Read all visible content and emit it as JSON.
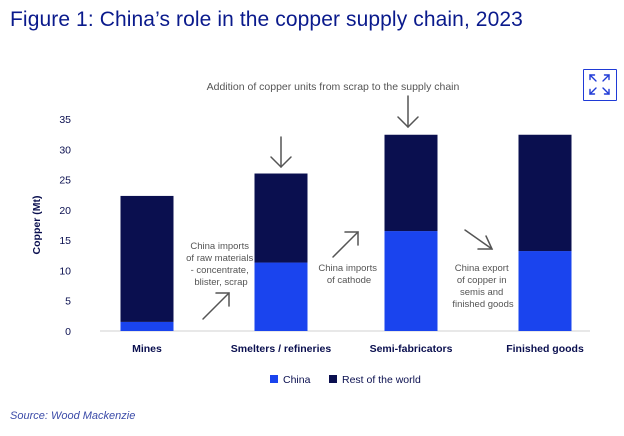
{
  "title": "Figure 1: China’s role in the copper supply chain, 2023",
  "source": "Source: Wood Mackenzie",
  "expand_icon": "expand-arrows-icon",
  "colors": {
    "china": "#1a44ee",
    "rest": "#0a0f4f",
    "title": "#0a1a8c",
    "accent": "#1f3ad6"
  },
  "annotations": {
    "scrap": "Addition of copper units from scrap to the supply chain",
    "raw_materials": [
      "China imports",
      "of raw materials",
      "- concentrate,",
      "blister, scrap"
    ],
    "cathode": [
      "China imports",
      "of cathode"
    ],
    "export": [
      "China export",
      "of copper in",
      "semis and",
      "finished goods"
    ]
  },
  "chart_data": {
    "type": "bar",
    "stacked": true,
    "title": "",
    "xlabel": "",
    "ylabel": "Copper (Mt)",
    "ylim": [
      0,
      35
    ],
    "yticks": [
      0,
      5,
      10,
      15,
      20,
      25,
      30,
      35
    ],
    "grid": false,
    "legend_position": "bottom-center",
    "categories": [
      "Mines",
      "Smelters / refineries",
      "Semi-fabricators",
      "Finished goods"
    ],
    "series": [
      {
        "name": "China",
        "values": [
          1.5,
          11.3,
          16.5,
          13.2
        ]
      },
      {
        "name": "Rest of the world",
        "values": [
          20.8,
          14.7,
          15.9,
          19.2
        ]
      }
    ]
  }
}
